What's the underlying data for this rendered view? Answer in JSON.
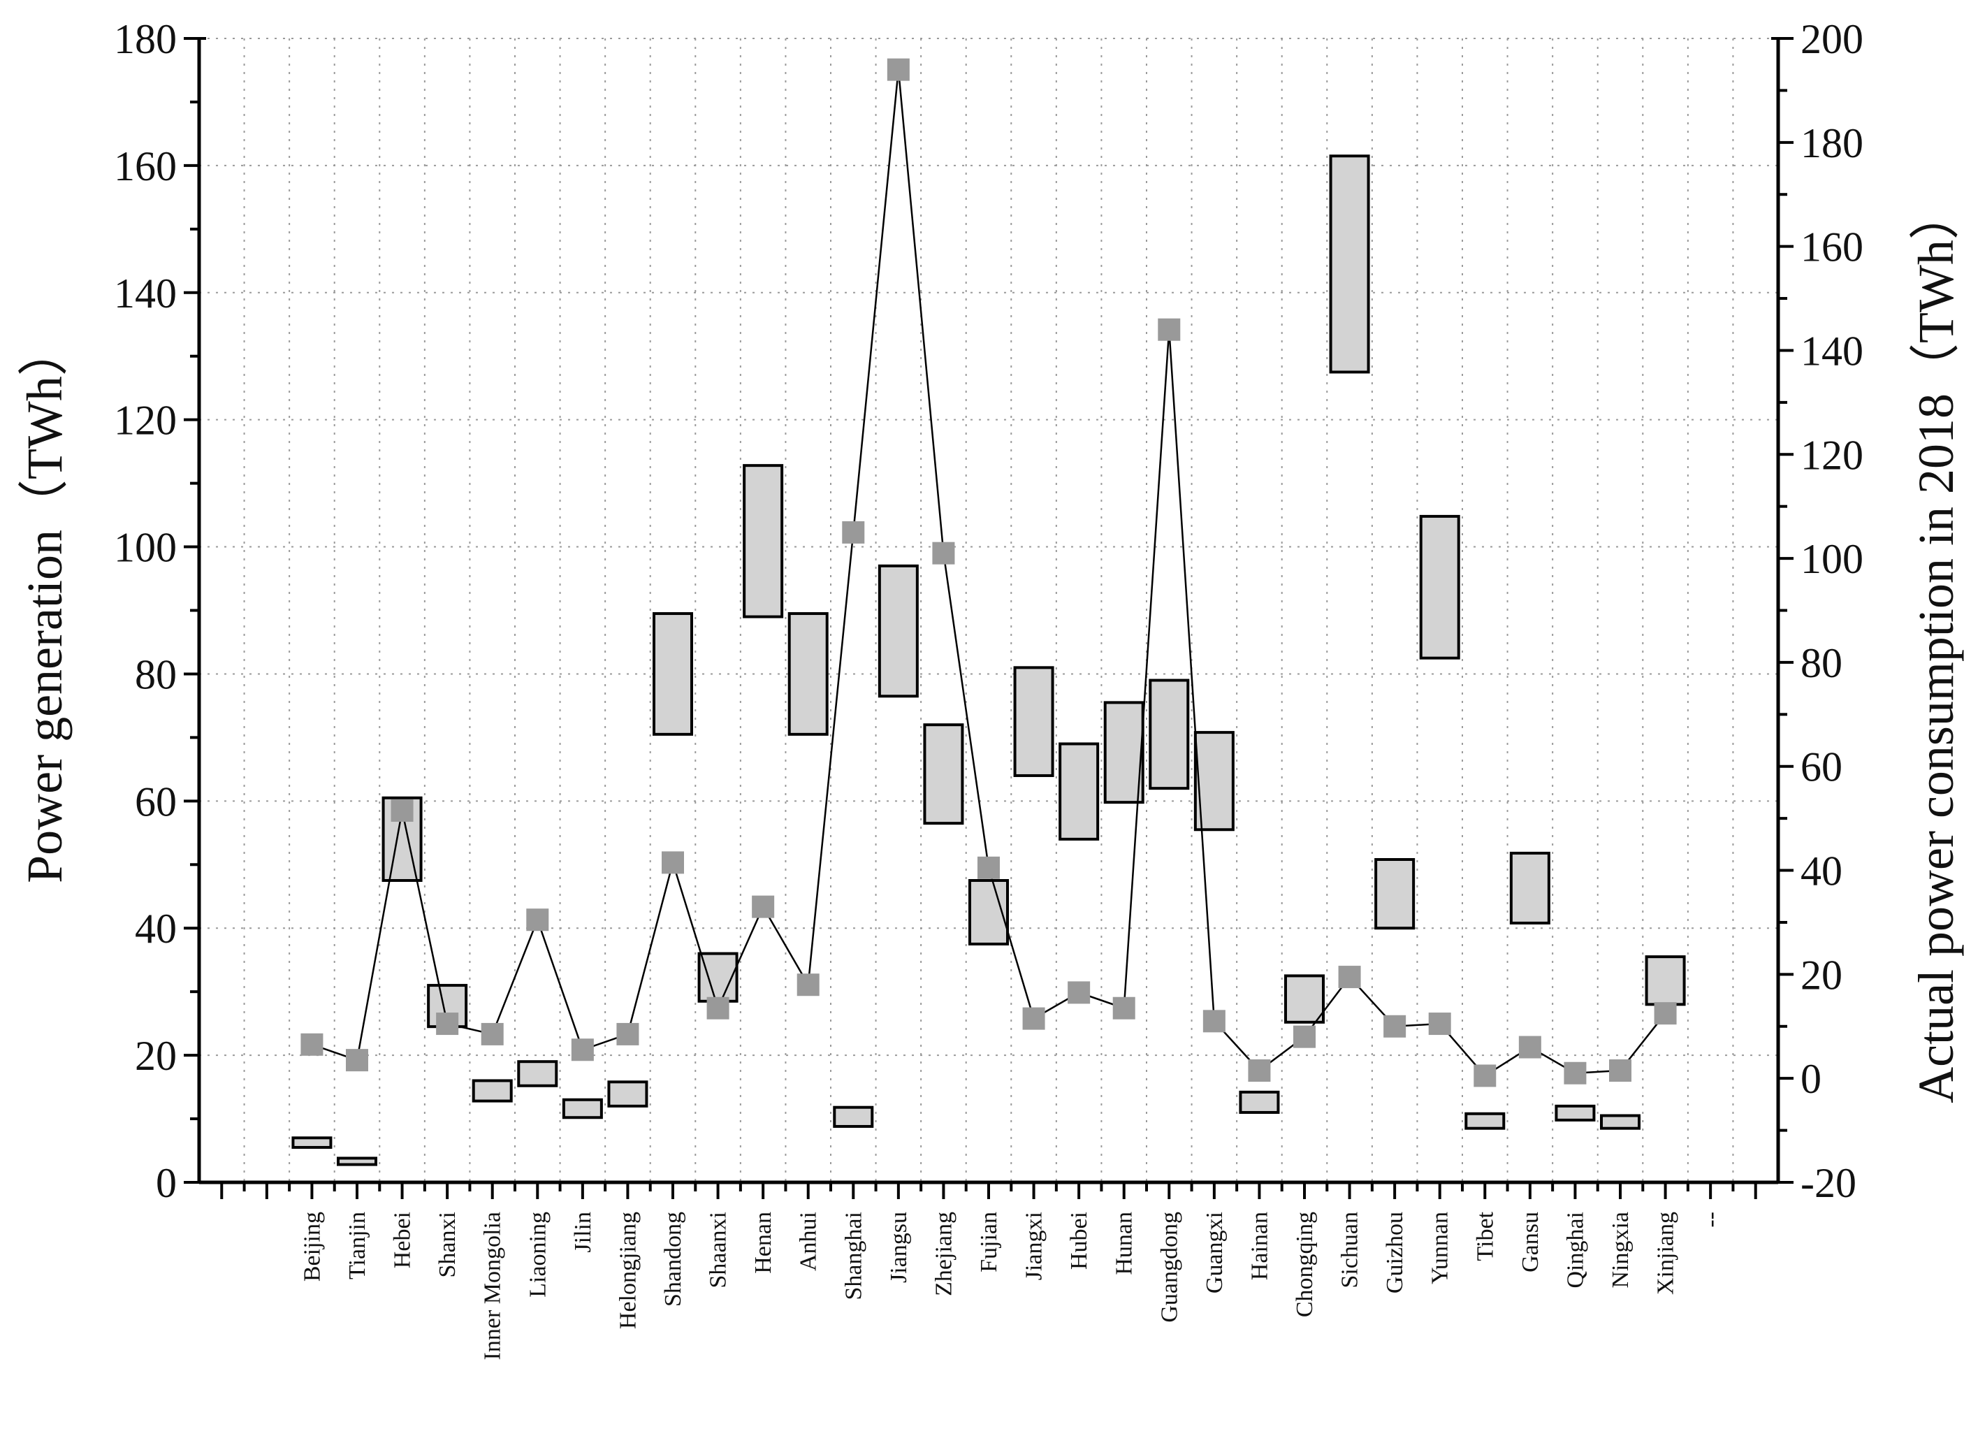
{
  "chart_data": {
    "type": "box-and-line",
    "ylabel_left": "Power generation（TWh）",
    "ylabel_right": "Actual power consumption in 2018（TWh）",
    "ylim_left": [
      0,
      180
    ],
    "ylim_right": [
      -20,
      200
    ],
    "yticks_left": [
      "0",
      "20",
      "40",
      "60",
      "80",
      "100",
      "120",
      "140",
      "160",
      "180"
    ],
    "yticks_right": [
      "-20",
      "0",
      "20",
      "40",
      "60",
      "80",
      "100",
      "120",
      "140",
      "160",
      "180",
      "200"
    ],
    "categories": [
      "",
      "",
      "Beijing",
      "Tianjin",
      "Hebei",
      "Shanxi",
      "Inner Mongolia",
      "Liaoning",
      "Jilin",
      "Helongjiang",
      "Shandong",
      "Shaanxi",
      "Henan",
      "Anhui",
      "Shanghai",
      "Jiangsu",
      "Zhejiang",
      "Fujian",
      "Jiangxi",
      "Hubei",
      "Hunan",
      "Guangdong",
      "Guangxi",
      "Hainan",
      "Chongqing",
      "Sichuan",
      "Guizhou",
      "Yunnan",
      "Tibet",
      "Gansu",
      "Qinghai",
      "Ningxia",
      "Xinjiang",
      "--",
      ""
    ],
    "series": [
      {
        "name": "Power generation range (TWh)",
        "axis": "left",
        "kind": "floating-box",
        "ranges": [
          null,
          null,
          [
            5.5,
            7
          ],
          [
            2.8,
            3.8
          ],
          [
            47.5,
            60.5
          ],
          [
            24.5,
            31
          ],
          [
            12.8,
            16
          ],
          [
            15.2,
            19
          ],
          [
            10.2,
            13
          ],
          [
            12,
            15.8
          ],
          [
            70.5,
            89.5
          ],
          [
            28.5,
            36
          ],
          [
            89,
            112.8
          ],
          [
            70.5,
            89.5
          ],
          [
            8.8,
            11.8
          ],
          [
            76.5,
            97
          ],
          [
            56.5,
            72
          ],
          [
            37.5,
            47.5
          ],
          [
            64,
            81
          ],
          [
            54,
            69
          ],
          [
            59.8,
            75.5
          ],
          [
            62,
            79
          ],
          [
            55.5,
            70.8
          ],
          [
            11,
            14.2
          ],
          [
            25.2,
            32.5
          ],
          [
            127.5,
            161.5
          ],
          [
            40,
            50.8
          ],
          [
            82.5,
            104.8
          ],
          [
            8.5,
            10.8
          ],
          [
            40.8,
            51.8
          ],
          [
            9.8,
            12
          ],
          [
            8.5,
            10.5
          ],
          [
            28,
            35.5
          ],
          null,
          null
        ]
      },
      {
        "name": "Actual power consumption in 2018 (TWh)",
        "axis": "right",
        "kind": "line-markers",
        "values": [
          null,
          null,
          6.5,
          3.5,
          51.5,
          10.5,
          8.5,
          30.5,
          5.5,
          8.5,
          41.5,
          13.5,
          33,
          18,
          105,
          194,
          101,
          40.5,
          11.5,
          16.5,
          13.5,
          144,
          11,
          1.5,
          8,
          19.5,
          10,
          10.5,
          0.5,
          6,
          1,
          1.5,
          12.5,
          null,
          null
        ]
      }
    ]
  }
}
